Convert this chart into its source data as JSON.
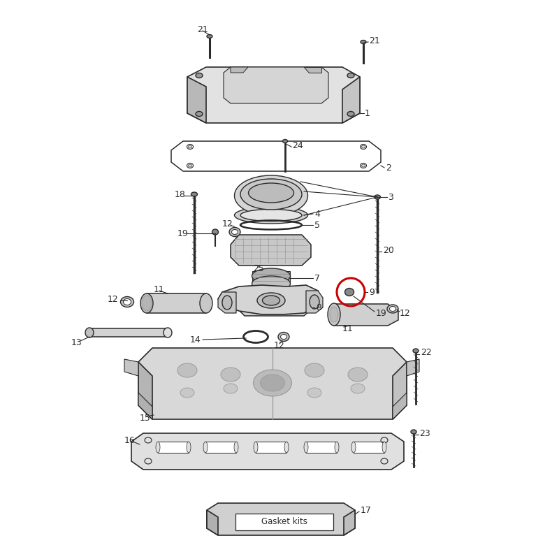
{
  "bg": "#ffffff",
  "lc": "#2a2a2a",
  "rc": "#cc0000",
  "gasket_text": "Gasket kits",
  "gray1": "#d8d8d8",
  "gray2": "#c0c0c0",
  "gray3": "#a8a8a8",
  "gray4": "#e8e8e8"
}
